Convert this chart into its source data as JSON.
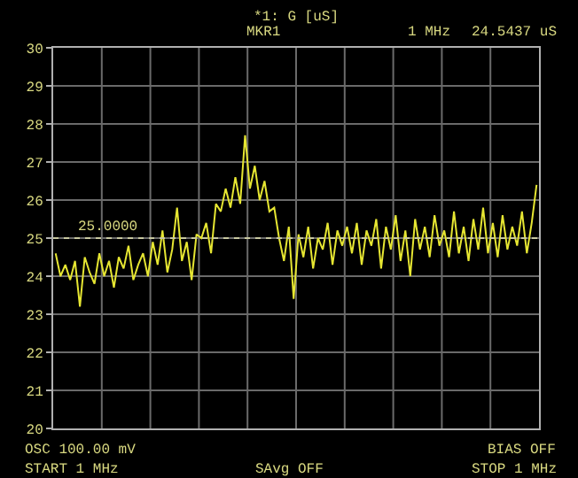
{
  "chart_data": {
    "type": "line",
    "title": "*1: G [uS]",
    "categories": [
      null,
      null,
      null,
      null,
      null,
      null,
      null,
      null,
      null,
      null,
      null,
      null,
      null,
      null,
      null,
      null,
      null,
      null,
      null,
      null,
      null,
      null,
      null,
      null,
      null,
      null,
      null,
      null,
      null,
      null,
      null,
      null,
      null,
      null,
      null,
      null,
      null,
      null,
      null,
      null,
      null,
      null,
      null,
      null,
      null,
      null,
      null,
      null,
      null,
      null,
      null,
      null,
      null,
      null,
      null,
      null,
      null,
      null,
      null,
      null,
      null,
      null,
      null,
      null,
      null,
      null,
      null,
      null,
      null,
      null,
      null,
      null,
      null,
      null,
      null,
      null,
      null,
      null,
      null,
      null,
      null,
      null,
      null,
      null,
      null,
      null,
      null,
      null,
      null,
      null,
      null,
      null,
      null,
      null,
      null,
      null,
      null,
      null,
      null,
      null
    ],
    "series": [
      {
        "color": "#e6e632",
        "values": [
          24.6,
          24.0,
          24.3,
          23.9,
          24.4,
          23.2,
          24.5,
          24.1,
          23.8,
          24.6,
          24.0,
          24.4,
          23.7,
          24.5,
          24.2,
          24.8,
          23.9,
          24.3,
          24.6,
          24.0,
          24.9,
          24.3,
          25.2,
          24.1,
          24.7,
          25.8,
          24.4,
          24.9,
          23.9,
          25.1,
          25.0,
          25.4,
          24.6,
          25.9,
          25.7,
          26.3,
          25.8,
          26.6,
          25.9,
          27.7,
          26.3,
          26.9,
          26.0,
          26.5,
          25.7,
          25.8,
          25.0,
          24.4,
          25.3,
          23.4,
          25.1,
          24.5,
          25.3,
          24.2,
          25.0,
          24.7,
          25.4,
          24.3,
          25.2,
          24.8,
          25.3,
          24.6,
          25.4,
          24.3,
          25.2,
          24.8,
          25.5,
          24.2,
          25.3,
          24.7,
          25.6,
          24.4,
          25.2,
          24.0,
          25.5,
          24.7,
          25.3,
          24.5,
          25.6,
          24.8,
          25.2,
          24.5,
          25.7,
          24.6,
          25.3,
          24.4,
          25.5,
          24.7,
          25.8,
          24.6,
          25.4,
          24.5,
          25.6,
          24.7,
          25.3,
          24.8,
          25.7,
          24.6,
          25.4,
          26.4
        ]
      }
    ],
    "ylim": [
      20,
      30
    ],
    "yticks": [
      20,
      21,
      22,
      23,
      24,
      25,
      26,
      27,
      28,
      29,
      30
    ],
    "grid": true,
    "marker": "none",
    "line_style": "solid",
    "ref_lines": [
      {
        "axis": "y",
        "value": 25,
        "label": "25.0000",
        "color": "#c8c8a0",
        "line_style": "dotted"
      }
    ],
    "annotations": [
      "MKR1",
      "1 MHz",
      "24.5437 uS",
      "OSC 100.00 mV",
      "BIAS OFF",
      "START 1 MHz",
      "SAvg OFF",
      "STOP 1 MHz"
    ]
  }
}
